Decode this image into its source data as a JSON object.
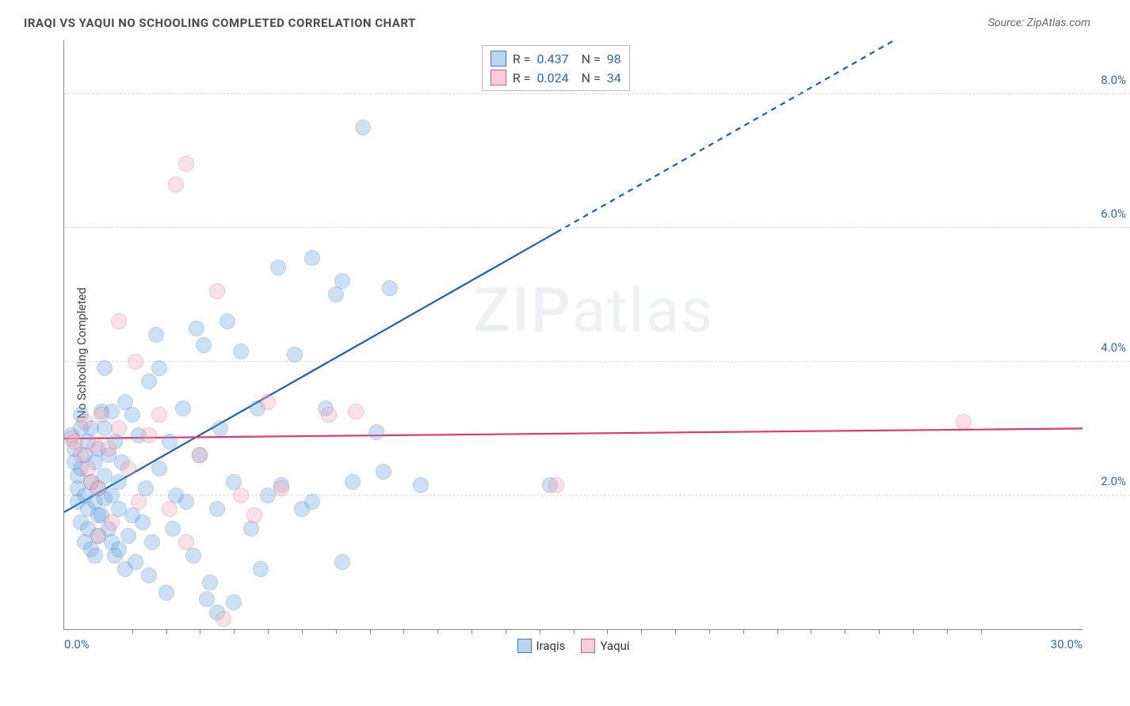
{
  "title": "IRAQI VS YAQUI NO SCHOOLING COMPLETED CORRELATION CHART",
  "source": "Source: ZipAtlas.com",
  "ylabel": "No Schooling Completed",
  "watermark": {
    "bold": "ZIP",
    "rest": "atlas"
  },
  "chart": {
    "type": "scatter",
    "xlim": [
      0,
      30
    ],
    "ylim": [
      0,
      8.8
    ],
    "x_ticks_labeled": [
      {
        "v": 0,
        "label": "0.0%",
        "pos": "first"
      },
      {
        "v": 30,
        "label": "30.0%",
        "pos": "last"
      }
    ],
    "x_minor_ticks": [
      2,
      3,
      4,
      5,
      6,
      7,
      8,
      9,
      10,
      11,
      12,
      13,
      14,
      15,
      16,
      17,
      18,
      19,
      20,
      21,
      22,
      23,
      24,
      25,
      26,
      27
    ],
    "y_gridlines": [
      {
        "v": 2,
        "label": "2.0%"
      },
      {
        "v": 4,
        "label": "4.0%"
      },
      {
        "v": 6,
        "label": "6.0%"
      },
      {
        "v": 8,
        "label": "8.0%"
      }
    ],
    "background_color": "#ffffff",
    "grid_color": "#dddddd",
    "axis_color": "#888888",
    "tick_label_color": "#2b6cb0",
    "marker_radius": 10,
    "marker_fill_opacity": 0.35,
    "series": [
      {
        "name": "Iraqis",
        "color": "#6ea8e0",
        "stroke": "#3f7cc4",
        "legend": {
          "R": "0.437",
          "N": "98"
        },
        "trend": {
          "x1": 0,
          "y1": 1.75,
          "x2": 30,
          "y2": 10.4,
          "solid_until_x": 14.5,
          "color": "#1e5fb3",
          "width": 2.2
        },
        "points": [
          [
            0.2,
            2.9
          ],
          [
            0.3,
            2.5
          ],
          [
            0.3,
            2.7
          ],
          [
            0.4,
            2.1
          ],
          [
            0.4,
            2.3
          ],
          [
            0.4,
            1.9
          ],
          [
            0.5,
            3.2
          ],
          [
            0.5,
            2.4
          ],
          [
            0.5,
            1.6
          ],
          [
            0.6,
            1.3
          ],
          [
            0.6,
            2.6
          ],
          [
            0.6,
            2.0
          ],
          [
            0.7,
            2.8
          ],
          [
            0.7,
            1.8
          ],
          [
            0.7,
            1.5
          ],
          [
            0.8,
            2.2
          ],
          [
            0.8,
            3.0
          ],
          [
            0.8,
            1.2
          ],
          [
            0.9,
            2.5
          ],
          [
            0.9,
            1.9
          ],
          [
            0.9,
            1.1
          ],
          [
            1.0,
            2.7
          ],
          [
            1.0,
            2.1
          ],
          [
            1.0,
            1.4
          ],
          [
            1.1,
            3.25
          ],
          [
            1.1,
            1.7
          ],
          [
            1.2,
            2.3
          ],
          [
            1.2,
            1.95
          ],
          [
            1.2,
            3.0
          ],
          [
            1.3,
            1.5
          ],
          [
            1.3,
            2.6
          ],
          [
            1.4,
            1.3
          ],
          [
            1.4,
            2.0
          ],
          [
            1.4,
            3.25
          ],
          [
            1.5,
            2.8
          ],
          [
            1.5,
            1.1
          ],
          [
            1.6,
            2.2
          ],
          [
            1.6,
            1.8
          ],
          [
            1.7,
            2.5
          ],
          [
            1.8,
            0.9
          ],
          [
            1.8,
            3.4
          ],
          [
            1.9,
            1.4
          ],
          [
            2.0,
            3.2
          ],
          [
            2.0,
            1.7
          ],
          [
            2.1,
            1.0
          ],
          [
            2.2,
            2.9
          ],
          [
            2.3,
            1.6
          ],
          [
            2.4,
            2.1
          ],
          [
            2.5,
            3.7
          ],
          [
            2.5,
            0.8
          ],
          [
            2.6,
            1.3
          ],
          [
            2.8,
            2.4
          ],
          [
            2.8,
            3.9
          ],
          [
            1.2,
            3.9
          ],
          [
            3.0,
            0.55
          ],
          [
            3.1,
            2.8
          ],
          [
            3.2,
            1.5
          ],
          [
            3.3,
            2.0
          ],
          [
            3.5,
            3.3
          ],
          [
            3.6,
            1.9
          ],
          [
            3.8,
            1.1
          ],
          [
            4.0,
            2.6
          ],
          [
            4.1,
            4.25
          ],
          [
            4.2,
            0.45
          ],
          [
            4.3,
            0.7
          ],
          [
            4.5,
            1.8
          ],
          [
            4.6,
            3.0
          ],
          [
            4.8,
            4.6
          ],
          [
            5.0,
            2.2
          ],
          [
            5.0,
            0.4
          ],
          [
            5.2,
            4.15
          ],
          [
            5.5,
            1.5
          ],
          [
            5.7,
            3.3
          ],
          [
            5.8,
            0.9
          ],
          [
            6.0,
            2.0
          ],
          [
            6.3,
            5.4
          ],
          [
            6.4,
            2.15
          ],
          [
            6.8,
            4.1
          ],
          [
            7.0,
            1.8
          ],
          [
            7.3,
            5.55
          ],
          [
            7.3,
            1.9
          ],
          [
            7.7,
            3.3
          ],
          [
            8.0,
            5.0
          ],
          [
            8.2,
            1.0
          ],
          [
            8.2,
            5.2
          ],
          [
            8.5,
            2.2
          ],
          [
            8.8,
            7.5
          ],
          [
            9.2,
            2.95
          ],
          [
            9.4,
            2.35
          ],
          [
            9.6,
            5.1
          ],
          [
            10.5,
            2.15
          ],
          [
            14.3,
            2.15
          ],
          [
            4.5,
            0.25
          ],
          [
            2.7,
            4.4
          ],
          [
            3.9,
            4.5
          ],
          [
            1.6,
            1.2
          ],
          [
            0.5,
            3.0
          ],
          [
            1.0,
            1.7
          ]
        ]
      },
      {
        "name": "Yaqui",
        "color": "#f3a8bb",
        "stroke": "#e05a82",
        "legend": {
          "R": "0.024",
          "N": "34"
        },
        "trend": {
          "x1": 0,
          "y1": 2.85,
          "x2": 30,
          "y2": 3.0,
          "solid_until_x": 30,
          "color": "#e6326e",
          "width": 2.2
        },
        "points": [
          [
            0.2,
            2.85
          ],
          [
            0.3,
            2.8
          ],
          [
            0.5,
            2.6
          ],
          [
            0.6,
            3.1
          ],
          [
            0.7,
            2.4
          ],
          [
            0.8,
            2.2
          ],
          [
            0.9,
            2.75
          ],
          [
            1.0,
            1.4
          ],
          [
            1.1,
            3.2
          ],
          [
            1.3,
            2.7
          ],
          [
            1.4,
            1.6
          ],
          [
            1.6,
            3.0
          ],
          [
            1.6,
            4.6
          ],
          [
            1.9,
            2.4
          ],
          [
            2.1,
            4.0
          ],
          [
            2.2,
            1.9
          ],
          [
            2.5,
            2.9
          ],
          [
            2.8,
            3.2
          ],
          [
            3.1,
            1.8
          ],
          [
            3.3,
            6.65
          ],
          [
            3.6,
            6.95
          ],
          [
            3.6,
            1.3
          ],
          [
            4.0,
            2.6
          ],
          [
            4.5,
            5.05
          ],
          [
            4.7,
            0.15
          ],
          [
            5.2,
            2.0
          ],
          [
            5.6,
            1.7
          ],
          [
            6.0,
            3.4
          ],
          [
            6.4,
            2.1
          ],
          [
            7.8,
            3.2
          ],
          [
            8.6,
            3.25
          ],
          [
            14.5,
            2.15
          ],
          [
            26.5,
            3.1
          ],
          [
            1.0,
            2.1
          ]
        ]
      }
    ]
  },
  "bottom_legend": [
    {
      "label": "Iraqis",
      "fill": "#b9d3f0",
      "border": "#3f7cc4"
    },
    {
      "label": "Yaqui",
      "fill": "#f7cdd9",
      "border": "#e05a82"
    }
  ],
  "top_legend_swatches": [
    {
      "fill": "#b9d3f0",
      "border": "#3f7cc4"
    },
    {
      "fill": "#f7cdd9",
      "border": "#e05a82"
    }
  ]
}
